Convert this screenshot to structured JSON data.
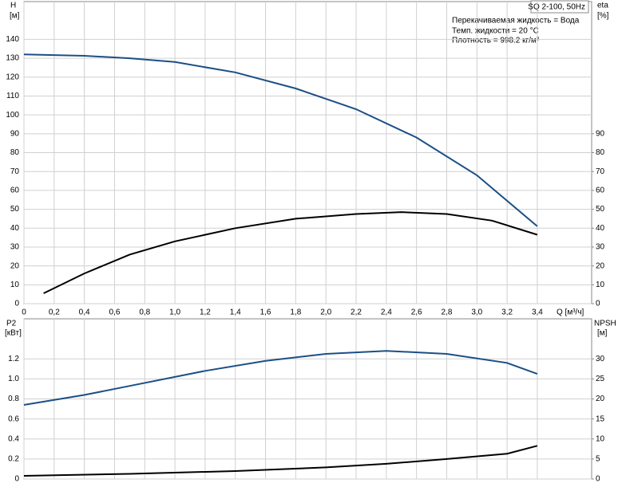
{
  "chart_data": [
    {
      "type": "line",
      "title": "SQ 2-100, 50Hz",
      "annotations": [
        "Перекачиваемая жидкость = Вода",
        "Темп. жидкости = 20 °C",
        "Плотность = 998.2 кг/м³"
      ],
      "ylabel": "H",
      "yunit": "[м]",
      "y2label": "eta",
      "y2unit": "[%]",
      "xlabel": "Q [м³/ч]",
      "xlim": [
        0,
        3.76
      ],
      "xticks": [
        0,
        {
          "value": 0.2,
          "label": "0,2"
        },
        {
          "value": 0.4,
          "label": "0,4"
        },
        {
          "value": 0.6,
          "label": "0,6"
        },
        {
          "value": 0.8,
          "label": "0,8"
        },
        {
          "value": 1,
          "label": "1,0"
        },
        {
          "value": 1.2,
          "label": "1,2"
        },
        {
          "value": 1.4,
          "label": "1,4"
        },
        {
          "value": 1.6,
          "label": "1,6"
        },
        {
          "value": 1.8,
          "label": "1,8"
        },
        {
          "value": 2,
          "label": "2,0"
        },
        {
          "value": 2.2,
          "label": "2,2"
        },
        {
          "value": 2.4,
          "label": "2,4"
        },
        {
          "value": 2.6,
          "label": "2,6"
        },
        {
          "value": 2.8,
          "label": "2,8"
        },
        {
          "value": 3,
          "label": "3,0"
        },
        {
          "value": 3.2,
          "label": "3,2"
        },
        {
          "value": 3.4,
          "label": "3,4"
        }
      ],
      "ylim": [
        0,
        160
      ],
      "yticks": [
        0,
        10,
        20,
        30,
        40,
        50,
        60,
        70,
        80,
        90,
        100,
        110,
        120,
        130,
        140
      ],
      "y2lim": [
        0,
        160
      ],
      "y2ticks": [
        0,
        10,
        20,
        30,
        40,
        50,
        60,
        70,
        80,
        90
      ],
      "grid": true,
      "series": [
        {
          "color": "#1b4f86",
          "x": [
            0,
            0.4,
            0.7,
            1.0,
            1.4,
            1.8,
            2.2,
            2.6,
            3.0,
            3.4
          ],
          "values": [
            132,
            131.3,
            130,
            128,
            122.5,
            114,
            103,
            88,
            68,
            41
          ]
        },
        {
          "color": "#000000",
          "axis": "y2",
          "x": [
            0.13,
            0.4,
            0.7,
            1.0,
            1.4,
            1.8,
            2.2,
            2.5,
            2.8,
            3.1,
            3.4
          ],
          "values": [
            5.5,
            16,
            26,
            33,
            40,
            45,
            47.5,
            48.5,
            47.5,
            44,
            36.5
          ]
        }
      ]
    },
    {
      "type": "line",
      "ylabel": "P2",
      "yunit": "[кВт]",
      "y2label": "NPSH",
      "y2unit": "[м]",
      "xlim": [
        0,
        3.76
      ],
      "ylim": [
        0,
        1.6
      ],
      "yticks": [
        0,
        0.2,
        0.4,
        0.6,
        0.8,
        {
          "value": 1,
          "label": "1.0"
        },
        1.2
      ],
      "y2lim": [
        0,
        40
      ],
      "y2ticks": [
        0,
        5,
        10,
        15,
        20,
        25,
        30
      ],
      "grid": true,
      "series": [
        {
          "color": "#1b4f86",
          "x": [
            0,
            0.4,
            0.7,
            1.2,
            1.6,
            2.0,
            2.4,
            2.8,
            3.2,
            3.4
          ],
          "values": [
            0.74,
            0.84,
            0.93,
            1.08,
            1.18,
            1.25,
            1.28,
            1.25,
            1.16,
            1.05
          ]
        },
        {
          "color": "#000000",
          "axis": "y2",
          "x": [
            0,
            0.7,
            1.4,
            2.0,
            2.4,
            2.8,
            3.2,
            3.4
          ],
          "values": [
            0.8,
            1.3,
            2,
            2.9,
            3.8,
            5,
            6.3,
            8.3
          ]
        }
      ]
    }
  ]
}
